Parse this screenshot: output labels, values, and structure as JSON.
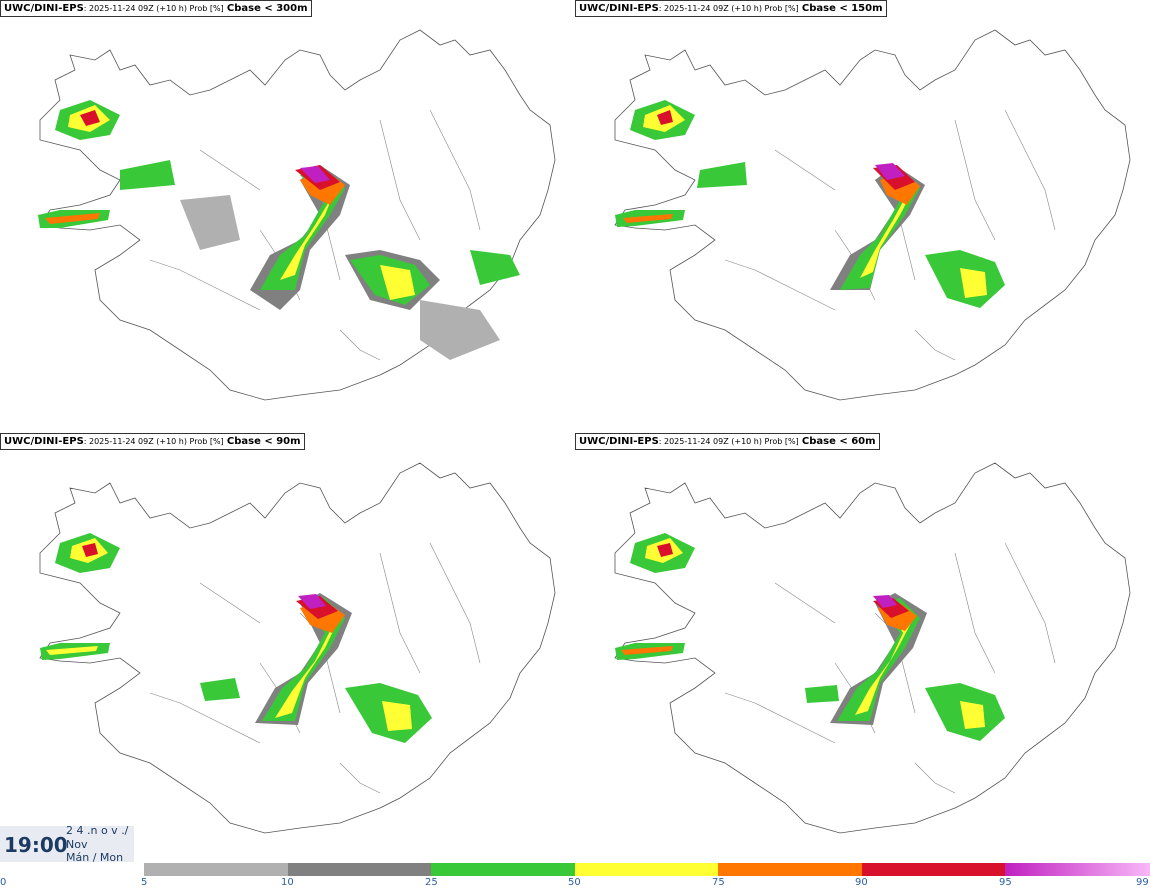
{
  "panels": [
    {
      "model": "UWC/DINI-EPS",
      "run": ": 2025-11-24 09Z (+10 h) Prob [%]",
      "threshold": "Cbase < 300m"
    },
    {
      "model": "UWC/DINI-EPS",
      "run": ": 2025-11-24 09Z (+10 h) Prob [%]",
      "threshold": "Cbase < 150m"
    },
    {
      "model": "UWC/DINI-EPS",
      "run": ": 2025-11-24 09Z (+10 h) Prob [%]",
      "threshold": "Cbase < 90m"
    },
    {
      "model": "UWC/DINI-EPS",
      "run": ": 2025-11-24 09Z (+10 h) Prob [%]",
      "threshold": "Cbase < 60m"
    }
  ],
  "valid_time": {
    "time": "19:00",
    "day": "2 4 .n o v ./",
    "month": "Nov",
    "weekday": "Mán / Mon"
  },
  "colorbar": {
    "ticks": [
      "0",
      "5",
      "10",
      "25",
      "50",
      "75",
      "90",
      "95",
      "99"
    ],
    "colors": [
      "#b0b0b0",
      "#808080",
      "#38c838",
      "#ffff33",
      "#ff7700",
      "#d8102c",
      "#c020c0",
      "#f8b8f8"
    ]
  }
}
